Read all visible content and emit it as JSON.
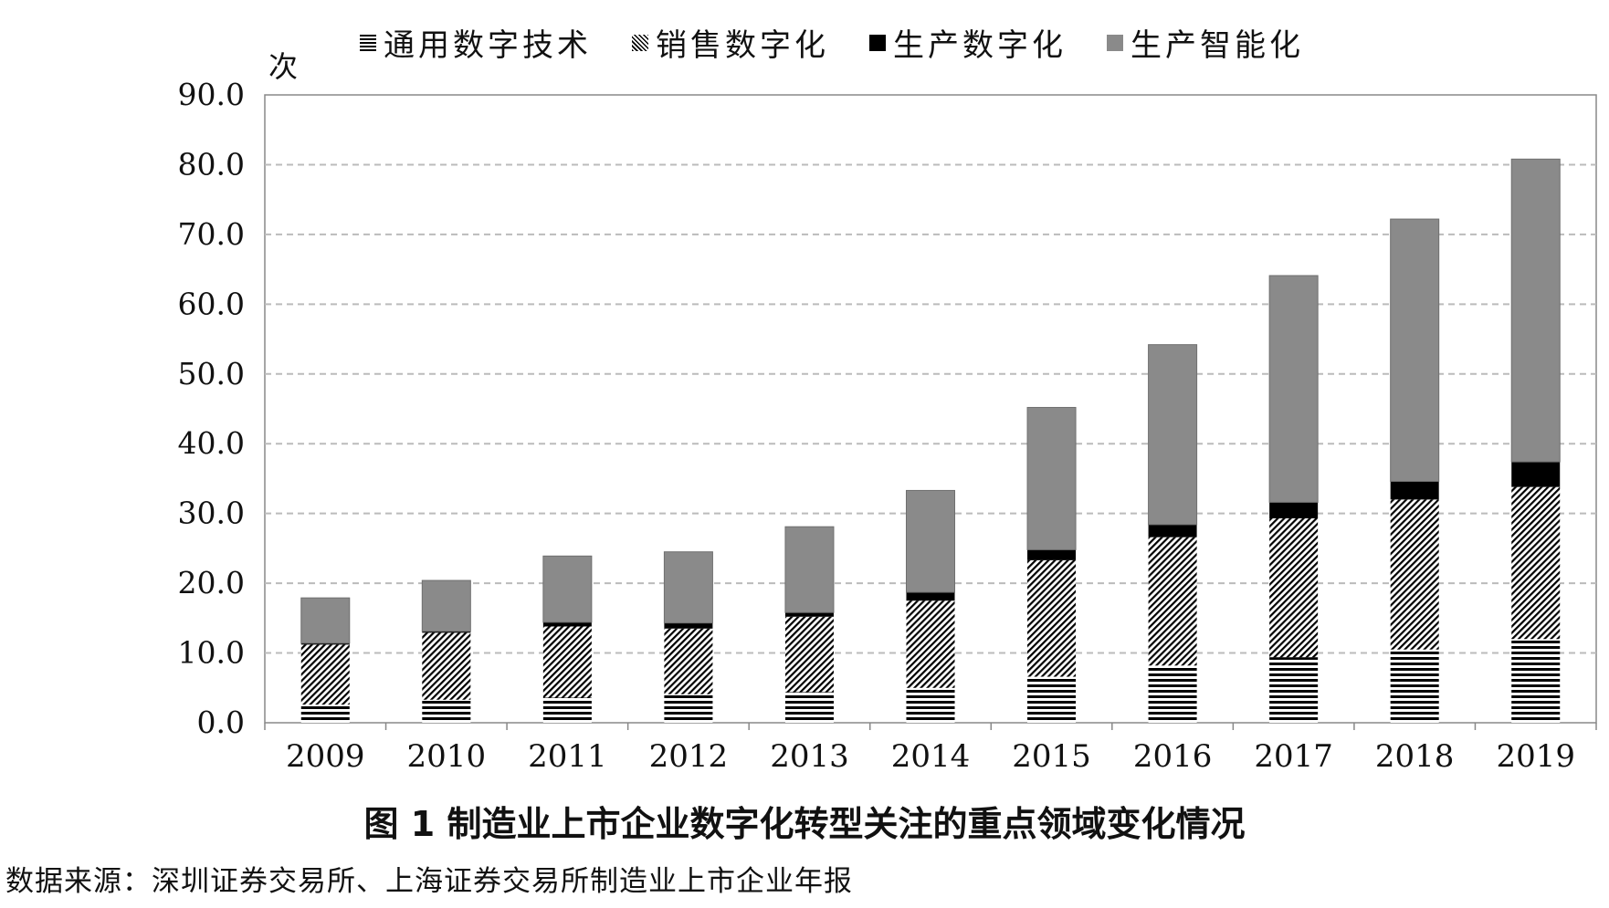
{
  "chart_data": {
    "type": "bar",
    "stacked": true,
    "categories": [
      "2009",
      "2010",
      "2011",
      "2012",
      "2013",
      "2014",
      "2015",
      "2016",
      "2017",
      "2018",
      "2019"
    ],
    "series": [
      {
        "name": "通用数字技术",
        "pattern": "horizontal-stripes",
        "values": [
          2.6,
          3.3,
          3.6,
          4.1,
          4.4,
          5.0,
          6.6,
          8.2,
          9.4,
          10.5,
          12.0
        ]
      },
      {
        "name": "销售数字化",
        "pattern": "diagonal-hatch",
        "values": [
          8.6,
          9.6,
          10.2,
          9.4,
          10.8,
          12.5,
          16.7,
          18.4,
          19.9,
          21.5,
          21.8
        ]
      },
      {
        "name": "生产数字化",
        "pattern": "solid-black",
        "values": [
          0.2,
          0.2,
          0.6,
          0.8,
          0.6,
          1.2,
          1.5,
          1.8,
          2.3,
          2.6,
          3.6
        ]
      },
      {
        "name": "生产智能化",
        "pattern": "solid-gray",
        "values": [
          6.5,
          7.3,
          9.5,
          10.2,
          12.3,
          14.6,
          20.4,
          25.8,
          32.5,
          37.6,
          43.4
        ]
      }
    ],
    "y_ticks": [
      "0.0",
      "10.0",
      "20.0",
      "30.0",
      "40.0",
      "50.0",
      "60.0",
      "70.0",
      "80.0",
      "90.0"
    ],
    "ylim": [
      0,
      90
    ],
    "ylabel": "次",
    "grid": true,
    "legend_position": "top",
    "caption": "图 1   制造业上市企业数字化转型关注的重点领域变化情况",
    "source": "数据来源：深圳证券交易所、上海证券交易所制造业上市企业年报",
    "colors": {
      "gray": "#8a8a8a",
      "black": "#000000",
      "grid": "#bbbbbb",
      "axis": "#888888"
    }
  }
}
